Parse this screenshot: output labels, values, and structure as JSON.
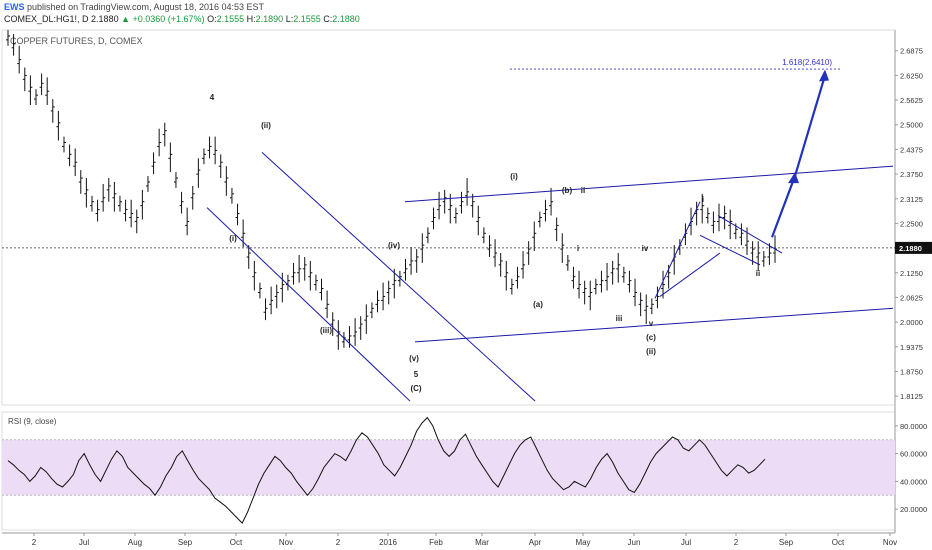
{
  "header": {
    "publisher": "EWS",
    "published_text": "published on TradingView.com, August 18, 2016 04:53 EST",
    "symbol_line": "COMEX_DL:HG1!, D",
    "last": "2.1880",
    "change": "▲ +0.0360 (+1.67%)",
    "ohlc": {
      "o_label": "O:",
      "o": "2.1555",
      "h_label": "H:",
      "h": "2.1890",
      "l_label": "L:",
      "l": "2.1555",
      "c_label": "C:",
      "c": "2.1880"
    }
  },
  "colors": {
    "line": "#1a1aa8",
    "wave": "#2233bb",
    "rsi_band": "#ecdcf5",
    "price_tag": "#111111",
    "up": "#1a9a3a"
  },
  "chart_data": [
    {
      "type": "line",
      "title": "COPPER FUTURES, D, COMEX",
      "x_tick_labels": [
        "2",
        "Jul",
        "Aug",
        "Sep",
        "Oct",
        "Nov",
        "2",
        "2016",
        "Feb",
        "Mar",
        "Apr",
        "May",
        "Jun",
        "Jul",
        "2",
        "Sep",
        "Oct",
        "Nov"
      ],
      "y_tick_labels": [
        "2.6875",
        "2.6250",
        "2.5625",
        "2.5000",
        "2.4375",
        "2.3750",
        "2.3125",
        "2.2500",
        "2.1250",
        "2.0625",
        "2.0000",
        "1.9375",
        "1.8750",
        "1.8125"
      ],
      "ylim": [
        1.79,
        2.74
      ],
      "last_price_label": "2.1880",
      "target_label": "1.618(2.6410)",
      "series": [
        {
          "values": [
            2.72,
            2.7,
            2.66,
            2.62,
            2.59,
            2.57,
            2.6,
            2.58,
            2.54,
            2.5,
            2.45,
            2.42,
            2.4,
            2.36,
            2.33,
            2.3,
            2.28,
            2.31,
            2.34,
            2.32,
            2.3,
            2.28,
            2.27,
            2.26,
            2.3,
            2.35,
            2.4,
            2.45,
            2.48,
            2.42,
            2.36,
            2.3,
            2.25,
            2.32,
            2.38,
            2.42,
            2.44,
            2.43,
            2.4,
            2.36,
            2.32,
            2.27,
            2.22,
            2.17,
            2.12,
            2.08,
            2.03,
            2.05,
            2.07,
            2.09,
            2.1,
            2.12,
            2.13,
            2.14,
            2.12,
            2.1,
            2.08,
            2.04,
            2.0,
            1.97,
            1.955,
            1.96,
            1.97,
            1.99,
            2.01,
            2.03,
            2.05,
            2.06,
            2.08,
            2.1,
            2.11,
            2.13,
            2.15,
            2.16,
            2.19,
            2.22,
            2.26,
            2.29,
            2.31,
            2.29,
            2.27,
            2.3,
            2.325,
            2.3,
            2.26,
            2.22,
            2.19,
            2.17,
            2.15,
            2.12,
            2.09,
            2.11,
            2.14,
            2.18,
            2.22,
            2.26,
            2.28,
            2.3,
            2.24,
            2.19,
            2.15,
            2.11,
            2.09,
            2.08,
            2.07,
            2.09,
            2.1,
            2.11,
            2.13,
            2.14,
            2.12,
            2.1,
            2.07,
            2.05,
            2.035,
            2.04,
            2.06,
            2.09,
            2.12,
            2.16,
            2.19,
            2.22,
            2.25,
            2.28,
            2.29,
            2.27,
            2.25,
            2.26,
            2.27,
            2.25,
            2.23,
            2.22,
            2.2,
            2.18,
            2.17,
            2.16,
            2.17,
            2.18
          ]
        }
      ],
      "wave_labels": [
        "4",
        "(ii)",
        "(i)",
        "(iii)",
        "(iv)",
        "(v)",
        "5",
        "(C)",
        "(i)",
        "(a)",
        "(b)",
        "ii",
        "i",
        "iv",
        "iii",
        "v",
        "(c)",
        "(ii)",
        "i",
        "ii"
      ]
    },
    {
      "type": "line",
      "title": "RSI (9, close)",
      "y_tick_labels": [
        "80.0000",
        "60.0000",
        "40.0000",
        "20.0000"
      ],
      "ylim": [
        5,
        90
      ],
      "band": [
        30,
        70
      ],
      "series": [
        {
          "values": [
            55,
            52,
            48,
            45,
            40,
            44,
            50,
            47,
            42,
            38,
            36,
            40,
            45,
            55,
            60,
            52,
            45,
            40,
            48,
            56,
            62,
            58,
            50,
            46,
            42,
            38,
            35,
            30,
            36,
            44,
            50,
            58,
            62,
            55,
            48,
            42,
            38,
            34,
            28,
            25,
            22,
            18,
            14,
            10,
            18,
            28,
            38,
            46,
            52,
            58,
            55,
            50,
            46,
            40,
            35,
            30,
            35,
            42,
            50,
            55,
            60,
            58,
            55,
            62,
            70,
            75,
            72,
            66,
            60,
            52,
            48,
            44,
            50,
            58,
            66,
            76,
            82,
            86,
            80,
            70,
            62,
            58,
            62,
            70,
            74,
            66,
            58,
            52,
            46,
            40,
            36,
            44,
            52,
            60,
            66,
            70,
            72,
            64,
            56,
            48,
            42,
            38,
            34,
            36,
            40,
            38,
            36,
            42,
            50,
            56,
            60,
            54,
            46,
            40,
            34,
            32,
            38,
            46,
            54,
            60,
            64,
            68,
            72,
            70,
            64,
            62,
            66,
            70,
            66,
            60,
            54,
            48,
            44,
            48,
            52,
            50,
            46,
            48,
            52,
            56
          ]
        }
      ]
    }
  ],
  "annotations": {
    "symbol_watermark": "COPPER FUTURES, D, COMEX"
  }
}
